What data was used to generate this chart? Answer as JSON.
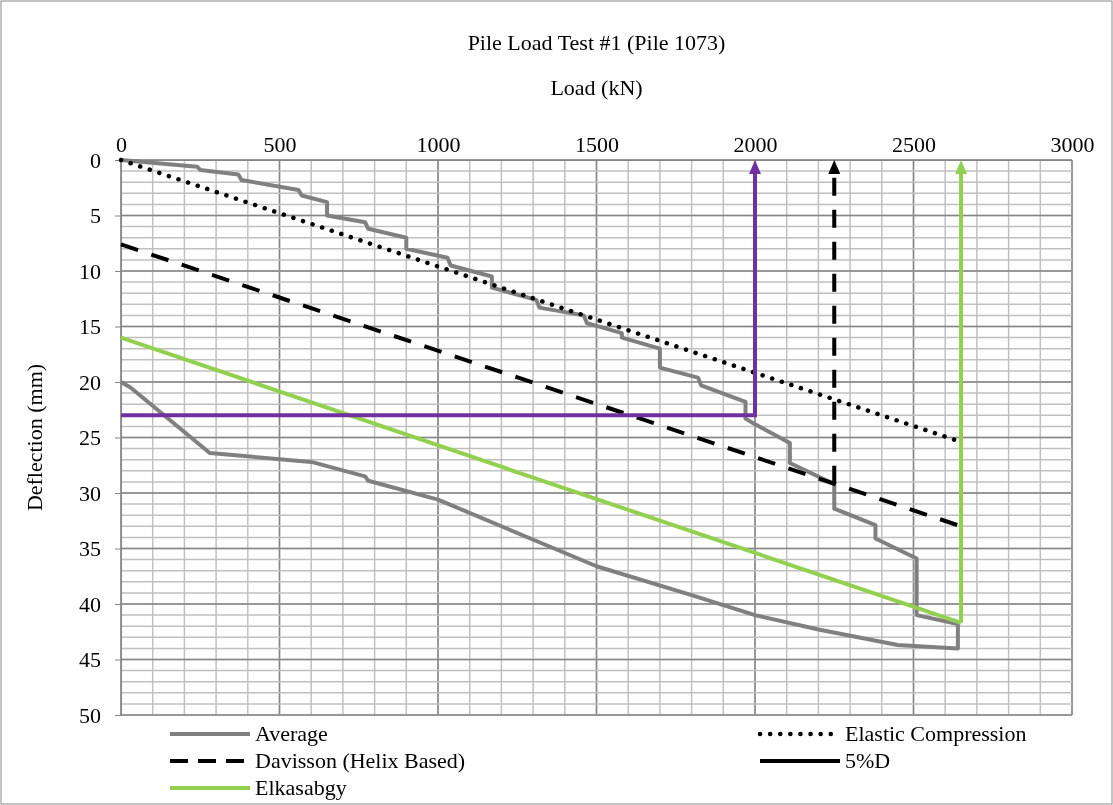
{
  "chart_data": {
    "type": "line",
    "title": "Pile Load Test #1 (Pile 1073)",
    "xlabel": "Load (kN)",
    "ylabel": "Deflection (mm)",
    "xlim": [
      0,
      3000
    ],
    "xticks": [
      0,
      500,
      1000,
      1500,
      2000,
      2500,
      3000
    ],
    "ylim": [
      50,
      0
    ],
    "yticks": [
      0,
      5,
      10,
      15,
      20,
      25,
      30,
      35,
      40,
      45,
      50
    ],
    "grid": true,
    "legend": "bottom",
    "line_style": "solid",
    "marker": "none",
    "series": [
      {
        "name": "Average",
        "color": "#808080",
        "x": [
          0,
          240,
          250,
          370,
          380,
          560,
          570,
          650,
          650,
          770,
          780,
          900,
          900,
          1030,
          1040,
          1170,
          1170,
          1310,
          1320,
          1460,
          1470,
          1580,
          1580,
          1700,
          1700,
          1820,
          1830,
          1970,
          1970,
          2000,
          2110,
          2110,
          2250,
          2250,
          2380,
          2380,
          2510,
          2510,
          2640,
          2640,
          2450,
          2200,
          2000,
          1800,
          1500,
          1000,
          780,
          770,
          600,
          280,
          30,
          0
        ],
        "values": [
          0,
          0.6,
          0.9,
          1.3,
          1.8,
          2.7,
          3.2,
          3.8,
          5.0,
          5.6,
          6.2,
          7.0,
          8.0,
          8.8,
          9.5,
          10.5,
          11.5,
          12.6,
          13.3,
          14.0,
          14.7,
          15.6,
          16.0,
          17.0,
          18.7,
          19.6,
          20.3,
          21.8,
          23.3,
          23.8,
          25.5,
          27.3,
          29.2,
          31.4,
          32.9,
          34.1,
          35.9,
          41.0,
          41.8,
          44.0,
          43.7,
          42.3,
          41.0,
          39.2,
          36.6,
          30.6,
          28.9,
          28.5,
          27.2,
          26.4,
          20.5,
          20.0
        ]
      },
      {
        "name": "Elastic Compression",
        "color": "#000000",
        "line_style": "dotted",
        "x": [
          0,
          2640
        ],
        "values": [
          0,
          25.3
        ]
      },
      {
        "name": "Davisson (Helix Based)",
        "color": "#000000",
        "line_style": "dashed",
        "x": [
          0,
          2650
        ],
        "values": [
          7.6,
          33.0
        ]
      },
      {
        "name": "5%D",
        "color": "#000000"
      },
      {
        "name": "Elkasabgy",
        "color": "#92d050",
        "x": [
          0,
          2650
        ],
        "values": [
          16.0,
          41.7
        ]
      }
    ],
    "ref_lines": [
      {
        "axis": "y",
        "value": 23,
        "color": "#7030a0"
      },
      {
        "axis": "x",
        "value": 2000,
        "color": "#7030a0"
      },
      {
        "axis": "x",
        "value": 2250,
        "color": "#000000",
        "line_style": "dashed"
      },
      {
        "axis": "x",
        "value": 2650,
        "color": "#92d050"
      }
    ]
  }
}
